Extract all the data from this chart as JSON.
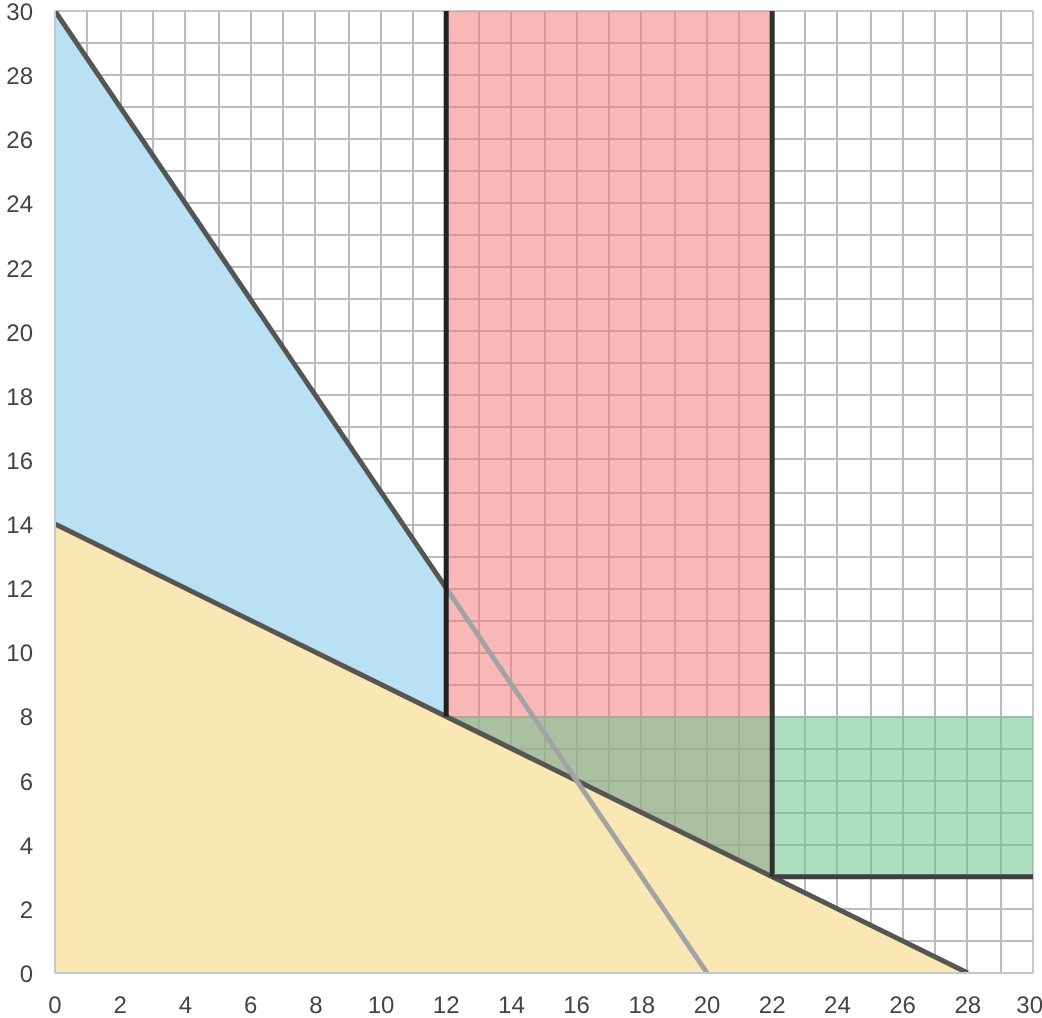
{
  "chart_data": {
    "type": "area",
    "xlim": [
      0,
      30
    ],
    "ylim": [
      0,
      30
    ],
    "xticks": [
      0,
      2,
      4,
      6,
      8,
      10,
      12,
      14,
      16,
      18,
      20,
      22,
      24,
      26,
      28,
      30
    ],
    "yticks": [
      0,
      2,
      4,
      6,
      8,
      10,
      12,
      14,
      16,
      18,
      20,
      22,
      24,
      26,
      28,
      30
    ],
    "grid": true,
    "series": [
      {
        "color": "#b9e0f3",
        "x": [
          0,
          12
        ],
        "values": [
          30,
          12
        ]
      },
      {
        "color": "#fae8b4",
        "x": [
          0,
          28
        ],
        "values": [
          14,
          0
        ]
      },
      {
        "type": "line",
        "color": "#a3a3a3",
        "x": [
          12,
          20
        ],
        "values": [
          12,
          0
        ]
      },
      {
        "type": "line",
        "color": "#202020",
        "x": [
          12,
          12
        ],
        "values": [
          8,
          30
        ]
      },
      {
        "type": "line",
        "color": "#303030",
        "x": [
          22,
          22
        ],
        "values": [
          3,
          30
        ]
      },
      {
        "type": "line",
        "color": "#404040",
        "x": [
          22,
          30
        ],
        "values": [
          3,
          3
        ]
      }
    ],
    "bands": [
      {
        "axis": "x",
        "from": 12,
        "to": 22,
        "color": "#f47e7e"
      },
      {
        "axis": "y",
        "from": 3,
        "to": 8,
        "color": "#6cc58e"
      }
    ]
  }
}
